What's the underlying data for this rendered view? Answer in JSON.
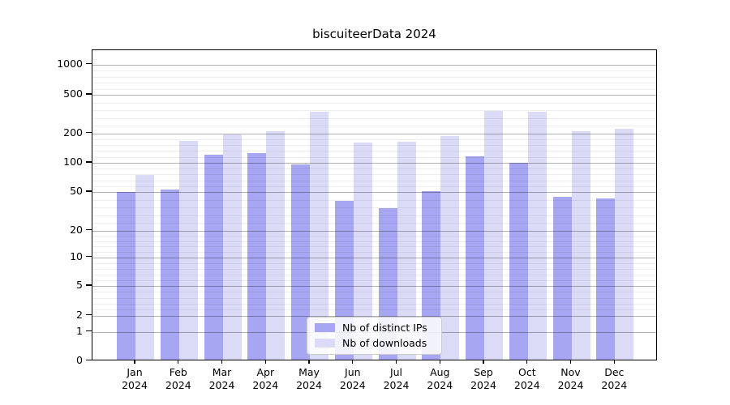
{
  "chart_data": {
    "type": "bar",
    "title": "biscuiteerData 2024",
    "categories": [
      "Jan 2024",
      "Feb 2024",
      "Mar 2024",
      "Apr 2024",
      "May 2024",
      "Jun 2024",
      "Jul 2024",
      "Aug 2024",
      "Sep 2024",
      "Oct 2024",
      "Nov 2024",
      "Dec 2024"
    ],
    "series": [
      {
        "name": "Nb of distinct IPs",
        "color": "#a6a6f2",
        "values": [
          50,
          53,
          120,
          125,
          96,
          40,
          34,
          51,
          117,
          100,
          44,
          43
        ]
      },
      {
        "name": "Nb of downloads",
        "color": "#dbdbf8",
        "values": [
          75,
          165,
          195,
          210,
          335,
          160,
          163,
          185,
          340,
          330,
          210,
          220
        ]
      }
    ],
    "y_scale": "symlog",
    "y_ticks": [
      0,
      1,
      2,
      5,
      10,
      20,
      50,
      100,
      200,
      500,
      1000
    ],
    "ylim": [
      0,
      1300
    ],
    "xlabel": "",
    "ylabel": "",
    "grid": true,
    "legend_position": "lower center"
  },
  "colors": {
    "grid_major": "rgba(0,0,0,0.30)",
    "grid_minor": "rgba(0,0,0,0.065)",
    "axis": "#000000",
    "legend_border": "#cccccc",
    "background": "#ffffff"
  }
}
